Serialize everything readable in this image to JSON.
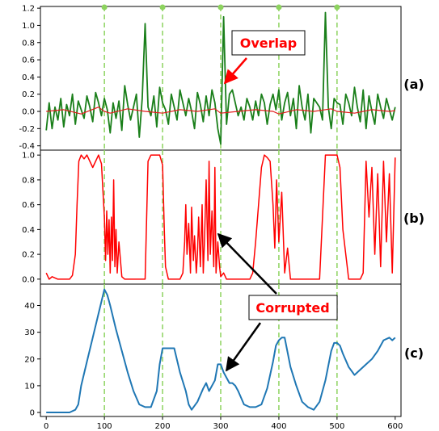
{
  "panel_labels": [
    "(a)",
    "(b)",
    "(c)"
  ],
  "annotations": {
    "overlap": "Overlap",
    "corrupted": "Corrupted"
  },
  "colors": {
    "panel_a_signal": "#1a7f1a",
    "panel_a_baseline": "#e31a1c",
    "panel_b_series": "#ff0000",
    "panel_c_series": "#1f77b4",
    "guide_lines": "#8dd35f",
    "annotation_text": "#ff0000",
    "arrow_overlap": "#ff0000",
    "arrow_corrupted": "#000000"
  },
  "chart_data": [
    {
      "type": "line",
      "panel": "(a)",
      "xlim": [
        -10,
        610
      ],
      "ylim": [
        -0.45,
        1.22
      ],
      "yticks": [
        -0.4,
        -0.2,
        0.0,
        0.2,
        0.4,
        0.6,
        0.8,
        1.0,
        1.2
      ],
      "ytick_labels": [
        "-0.4",
        "-0.2",
        "0.0",
        "0.2",
        "0.4",
        "0.6",
        "0.8",
        "1.0",
        "1.2"
      ],
      "vlines": [
        100,
        200,
        300,
        400,
        500
      ],
      "series": [
        {
          "values_x": [
            0,
            5,
            10,
            15,
            20,
            25,
            30,
            35,
            40,
            45,
            50,
            55,
            60,
            65,
            70,
            75,
            80,
            85,
            90,
            95,
            100,
            105,
            110,
            115,
            120,
            125,
            130,
            135,
            140,
            145,
            150,
            155,
            160,
            165,
            170,
            175,
            180,
            185,
            190,
            195,
            200,
            205,
            210,
            215,
            220,
            225,
            230,
            235,
            240,
            245,
            250,
            255,
            260,
            265,
            270,
            275,
            280,
            285,
            290,
            295,
            300,
            305,
            310,
            315,
            320,
            325,
            330,
            335,
            340,
            345,
            350,
            355,
            360,
            365,
            370,
            375,
            380,
            385,
            390,
            395,
            400,
            405,
            410,
            415,
            420,
            425,
            430,
            435,
            440,
            445,
            450,
            455,
            460,
            465,
            470,
            475,
            480,
            485,
            490,
            495,
            500,
            505,
            510,
            515,
            520,
            525,
            530,
            535,
            540,
            545,
            550,
            555,
            560,
            565,
            570,
            575,
            580,
            585,
            590,
            595,
            600
          ],
          "values_y": [
            -0.22,
            0.1,
            -0.2,
            0.05,
            -0.1,
            0.15,
            -0.18,
            0.08,
            -0.05,
            0.2,
            -0.15,
            0.12,
            0.02,
            -0.08,
            0.18,
            0.05,
            -0.12,
            0.22,
            0.1,
            -0.05,
            0.15,
            0.02,
            -0.25,
            0.1,
            -0.08,
            0.12,
            -0.22,
            0.3,
            0.08,
            -0.1,
            0.05,
            0.2,
            -0.3,
            0.15,
            1.02,
            0.05,
            -0.05,
            0.18,
            -0.18,
            0.28,
            0.1,
            0.02,
            -0.15,
            0.2,
            0.05,
            -0.1,
            0.25,
            0.1,
            -0.05,
            0.15,
            0.0,
            -0.2,
            0.22,
            0.08,
            -0.12,
            0.18,
            -0.05,
            0.25,
            0.1,
            -0.2,
            -0.38,
            1.1,
            -0.15,
            0.2,
            0.25,
            0.1,
            -0.05,
            0.05,
            -0.1,
            0.15,
            0.05,
            -0.1,
            0.12,
            -0.05,
            0.2,
            0.1,
            -0.15,
            0.08,
            0.2,
            0.02,
            0.25,
            -0.1,
            0.1,
            0.22,
            -0.05,
            0.15,
            -0.2,
            0.3,
            0.05,
            -0.1,
            0.2,
            -0.25,
            0.15,
            0.1,
            0.05,
            -0.1,
            1.15,
            0.05,
            -0.2,
            0.15,
            0.1,
            0.08,
            -0.15,
            0.2,
            0.1,
            -0.05,
            0.28,
            0.05,
            -0.12,
            0.25,
            -0.2,
            0.18,
            0.0,
            -0.15,
            0.2,
            0.05,
            -0.08,
            0.15,
            0.02,
            -0.1,
            0.05
          ]
        },
        {
          "values_x": [
            0,
            30,
            60,
            90,
            100,
            110,
            140,
            170,
            200,
            230,
            260,
            290,
            300,
            330,
            360,
            390,
            400,
            430,
            460,
            490,
            500,
            530,
            560,
            590,
            600
          ],
          "values_y": [
            0.0,
            0.02,
            -0.03,
            0.05,
            0.0,
            -0.02,
            0.03,
            0.0,
            -0.02,
            0.02,
            0.0,
            0.03,
            -0.02,
            0.0,
            0.02,
            0.0,
            -0.03,
            0.02,
            0.0,
            0.03,
            0.0,
            -0.02,
            0.02,
            0.0,
            0.01
          ]
        }
      ]
    },
    {
      "type": "line",
      "panel": "(b)",
      "xlim": [
        -10,
        610
      ],
      "ylim": [
        -0.04,
        1.04
      ],
      "yticks": [
        0.0,
        0.2,
        0.4,
        0.6,
        0.8,
        1.0
      ],
      "ytick_labels": [
        "0.0",
        "0.2",
        "0.4",
        "0.6",
        "0.8",
        "1.0"
      ],
      "vlines": [
        100,
        200,
        300,
        400,
        500
      ],
      "series": [
        {
          "values_x": [
            0,
            5,
            10,
            20,
            30,
            40,
            45,
            50,
            53,
            56,
            60,
            65,
            70,
            80,
            90,
            95,
            100,
            102,
            104,
            106,
            108,
            110,
            112,
            114,
            116,
            118,
            120,
            122,
            125,
            130,
            135,
            140,
            145,
            150,
            160,
            170,
            175,
            180,
            185,
            190,
            195,
            200,
            203,
            205,
            210,
            220,
            230,
            235,
            238,
            240,
            242,
            245,
            248,
            250,
            253,
            255,
            258,
            260,
            262,
            265,
            268,
            270,
            272,
            275,
            278,
            280,
            282,
            285,
            288,
            290,
            292,
            295,
            298,
            300,
            305,
            310,
            320,
            330,
            340,
            350,
            355,
            360,
            365,
            370,
            375,
            380,
            385,
            390,
            393,
            396,
            400,
            405,
            410,
            415,
            420,
            430,
            440,
            450,
            460,
            470,
            480,
            485,
            490,
            495,
            500,
            505,
            510,
            520,
            530,
            540,
            545,
            550,
            555,
            560,
            565,
            570,
            575,
            580,
            585,
            590,
            595,
            600
          ],
          "values_y": [
            0.05,
            0.0,
            0.02,
            0.0,
            0.0,
            0.0,
            0.03,
            0.2,
            0.6,
            0.95,
            1.0,
            0.97,
            1.0,
            0.9,
            1.0,
            0.93,
            0.5,
            0.15,
            0.55,
            0.2,
            0.48,
            0.05,
            0.5,
            0.15,
            0.8,
            0.1,
            0.4,
            0.05,
            0.3,
            0.02,
            0.0,
            0.0,
            0.0,
            0.0,
            0.0,
            0.0,
            0.95,
            1.0,
            1.0,
            1.0,
            1.0,
            0.92,
            0.4,
            0.1,
            0.0,
            0.0,
            0.0,
            0.05,
            0.3,
            0.6,
            0.2,
            0.45,
            0.05,
            0.58,
            0.15,
            0.35,
            0.05,
            0.2,
            0.5,
            0.1,
            0.6,
            0.05,
            0.3,
            0.8,
            0.15,
            0.95,
            0.2,
            0.55,
            0.1,
            0.9,
            0.05,
            0.3,
            0.1,
            0.02,
            0.05,
            0.0,
            0.0,
            0.0,
            0.0,
            0.0,
            0.05,
            0.3,
            0.6,
            0.9,
            1.0,
            0.98,
            0.95,
            0.6,
            0.25,
            0.8,
            0.3,
            0.7,
            0.05,
            0.25,
            0.0,
            0.0,
            0.0,
            0.0,
            0.0,
            0.0,
            1.0,
            1.0,
            1.0,
            1.0,
            1.0,
            0.9,
            0.4,
            0.0,
            0.0,
            0.0,
            0.05,
            0.95,
            0.5,
            0.9,
            0.2,
            0.85,
            0.1,
            0.95,
            0.3,
            0.85,
            0.05,
            0.98
          ]
        }
      ]
    },
    {
      "type": "line",
      "panel": "(c)",
      "xlim": [
        -10,
        610
      ],
      "ylim": [
        -1.5,
        48
      ],
      "yticks": [
        0,
        10,
        20,
        30,
        40
      ],
      "ytick_labels": [
        "0",
        "10",
        "20",
        "30",
        "40"
      ],
      "xticks": [
        0,
        100,
        200,
        300,
        400,
        500,
        600
      ],
      "xtick_labels": [
        "0",
        "100",
        "200",
        "300",
        "400",
        "500",
        "600"
      ],
      "vlines": [
        100,
        200,
        300,
        400,
        500
      ],
      "series": [
        {
          "values_x": [
            0,
            20,
            40,
            50,
            55,
            60,
            70,
            80,
            90,
            100,
            105,
            110,
            120,
            130,
            140,
            150,
            160,
            170,
            180,
            190,
            195,
            200,
            210,
            220,
            230,
            240,
            245,
            250,
            260,
            270,
            275,
            280,
            290,
            295,
            300,
            305,
            310,
            315,
            320,
            325,
            330,
            340,
            350,
            360,
            370,
            380,
            390,
            395,
            400,
            405,
            410,
            420,
            430,
            440,
            450,
            460,
            470,
            480,
            490,
            495,
            500,
            505,
            510,
            520,
            530,
            540,
            550,
            560,
            570,
            580,
            590,
            595,
            600
          ],
          "values_y": [
            0,
            0,
            0,
            1,
            3,
            10,
            19,
            28,
            37,
            46,
            44,
            40,
            31,
            23,
            15,
            8,
            3,
            2,
            2,
            8,
            18,
            24,
            24,
            24,
            15,
            8,
            3,
            1,
            4,
            9,
            11,
            8,
            12,
            18,
            18,
            15,
            13,
            11,
            11,
            10,
            8,
            3,
            2,
            2,
            3,
            9,
            19,
            25,
            27,
            28,
            28,
            17,
            10,
            4,
            2,
            1,
            4,
            12,
            23,
            26,
            26,
            25,
            22,
            17,
            14,
            16,
            18,
            20,
            23,
            27,
            28,
            27,
            28
          ]
        }
      ]
    }
  ]
}
